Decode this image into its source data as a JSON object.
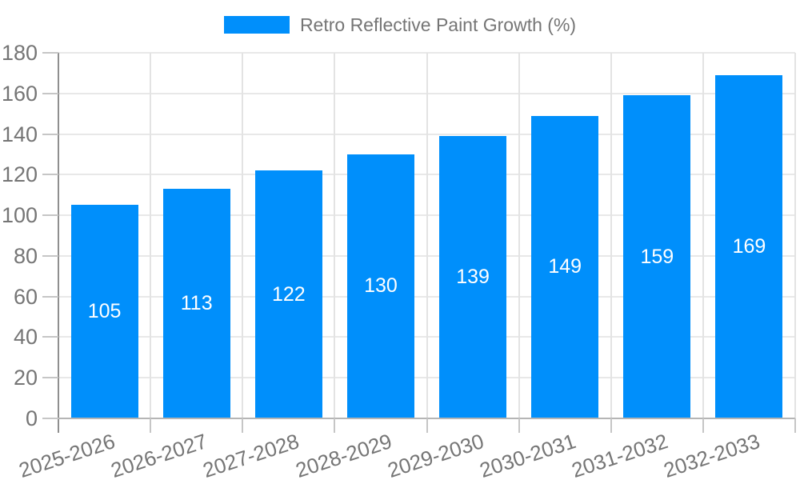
{
  "chart_data": {
    "type": "bar",
    "title": "",
    "legend": "Retro Reflective Paint Growth (%)",
    "legend_position": "top-center",
    "categories": [
      "2025-2026",
      "2026-2027",
      "2027-2028",
      "2028-2029",
      "2029-2030",
      "2030-2031",
      "2031-2032",
      "2032-2033"
    ],
    "values": [
      105,
      113,
      122,
      130,
      139,
      149,
      159,
      169
    ],
    "xlabel": "",
    "ylabel": "",
    "ylim": [
      0,
      180
    ],
    "ytick_step": 20,
    "ytick_labels": [
      "0",
      "20",
      "40",
      "60",
      "80",
      "100",
      "120",
      "140",
      "160",
      "180"
    ],
    "grid": true,
    "colors": {
      "bar": "#008FFB",
      "axis_text": "#757575",
      "value_label": "#FFFFFF"
    }
  }
}
